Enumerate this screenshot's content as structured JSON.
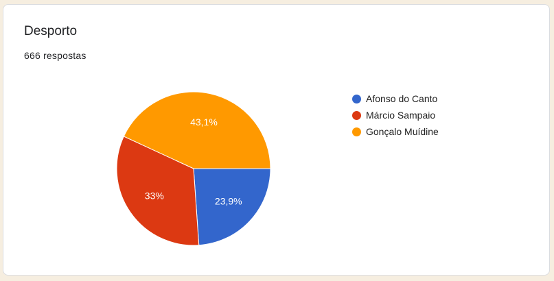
{
  "card": {
    "title": "Desporto",
    "responses": "666 respostas"
  },
  "chart_data": {
    "type": "pie",
    "categories": [
      "Afonso do Canto",
      "Márcio Sampaio",
      "Gonçalo Muídine"
    ],
    "values": [
      23.9,
      33,
      43.1
    ],
    "labels": [
      "23,9%",
      "33%",
      "43,1%"
    ],
    "colors": [
      "#3366cc",
      "#dc3912",
      "#ff9900"
    ],
    "legend": "right"
  }
}
